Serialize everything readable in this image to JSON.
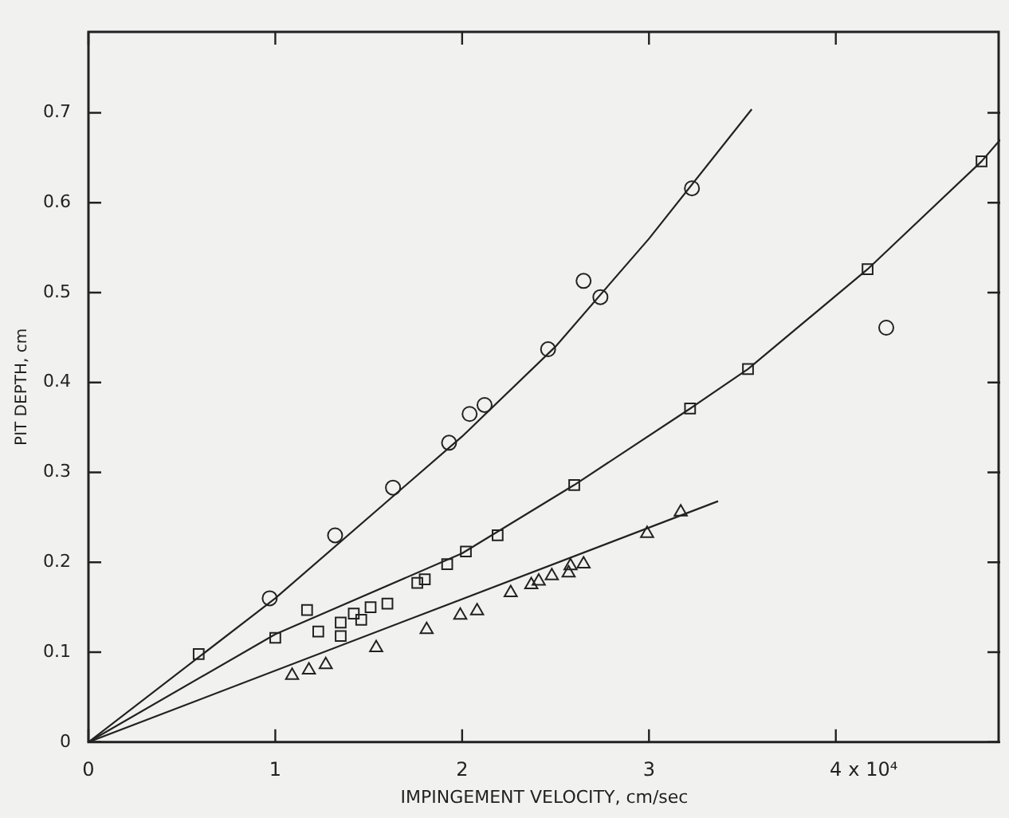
{
  "chart_data": {
    "type": "scatter",
    "xlabel": "IMPINGEMENT VELOCITY, cm/sec",
    "ylabel": "PIT DEPTH, cm",
    "xlim": [
      0,
      4.88
    ],
    "ylim": [
      0,
      0.79
    ],
    "xticks": [
      0,
      1,
      2,
      3,
      4
    ],
    "annotations": [
      "x 10⁴"
    ],
    "yticks": [
      0,
      0.1,
      0.2,
      0.3,
      0.4,
      0.5,
      0.6,
      0.7
    ],
    "grid": false,
    "legend": false,
    "series": [
      {
        "type": "scatter",
        "marker": "circle",
        "color": "#222222",
        "x": [
          0.97,
          1.32,
          1.63,
          1.93,
          2.04,
          2.12,
          2.46,
          2.65,
          2.74,
          3.23,
          4.27
        ],
        "values": [
          0.16,
          0.23,
          0.283,
          0.333,
          0.365,
          0.375,
          0.437,
          0.513,
          0.495,
          0.616,
          0.461
        ]
      },
      {
        "type": "scatter",
        "marker": "square",
        "color": "#222222",
        "x": [
          0.59,
          1.0,
          1.17,
          1.23,
          1.35,
          1.35,
          1.42,
          1.46,
          1.51,
          1.6,
          1.76,
          1.8,
          1.92,
          2.02,
          2.19,
          2.6,
          3.22,
          3.53,
          4.17,
          4.78
        ],
        "values": [
          0.098,
          0.116,
          0.147,
          0.123,
          0.133,
          0.118,
          0.143,
          0.136,
          0.15,
          0.154,
          0.177,
          0.181,
          0.198,
          0.212,
          0.23,
          0.286,
          0.371,
          0.415,
          0.526,
          0.646
        ]
      },
      {
        "type": "scatter",
        "marker": "triangle",
        "color": "#222222",
        "x": [
          1.09,
          1.18,
          1.27,
          1.54,
          1.81,
          1.99,
          2.08,
          2.26,
          2.37,
          2.41,
          2.48,
          2.57,
          2.58,
          2.65,
          2.99,
          3.17
        ],
        "values": [
          0.074,
          0.08,
          0.086,
          0.105,
          0.125,
          0.141,
          0.146,
          0.166,
          0.175,
          0.179,
          0.185,
          0.188,
          0.196,
          0.198,
          0.232,
          0.256
        ]
      },
      {
        "type": "line",
        "marker": "none",
        "color": "#222222",
        "x": [
          0,
          1,
          2,
          2.5,
          3,
          3.55
        ],
        "values": [
          0,
          0.16,
          0.34,
          0.44,
          0.56,
          0.704
        ]
      },
      {
        "type": "line",
        "marker": "none",
        "color": "#222222",
        "x": [
          0,
          1,
          2,
          2.6,
          3.22,
          3.53,
          4.17,
          4.78,
          4.88
        ],
        "values": [
          0,
          0.12,
          0.21,
          0.286,
          0.371,
          0.415,
          0.526,
          0.646,
          0.67
        ]
      },
      {
        "type": "line",
        "marker": "none",
        "color": "#222222",
        "x": [
          0,
          3.37
        ],
        "values": [
          0,
          0.268
        ]
      }
    ]
  }
}
